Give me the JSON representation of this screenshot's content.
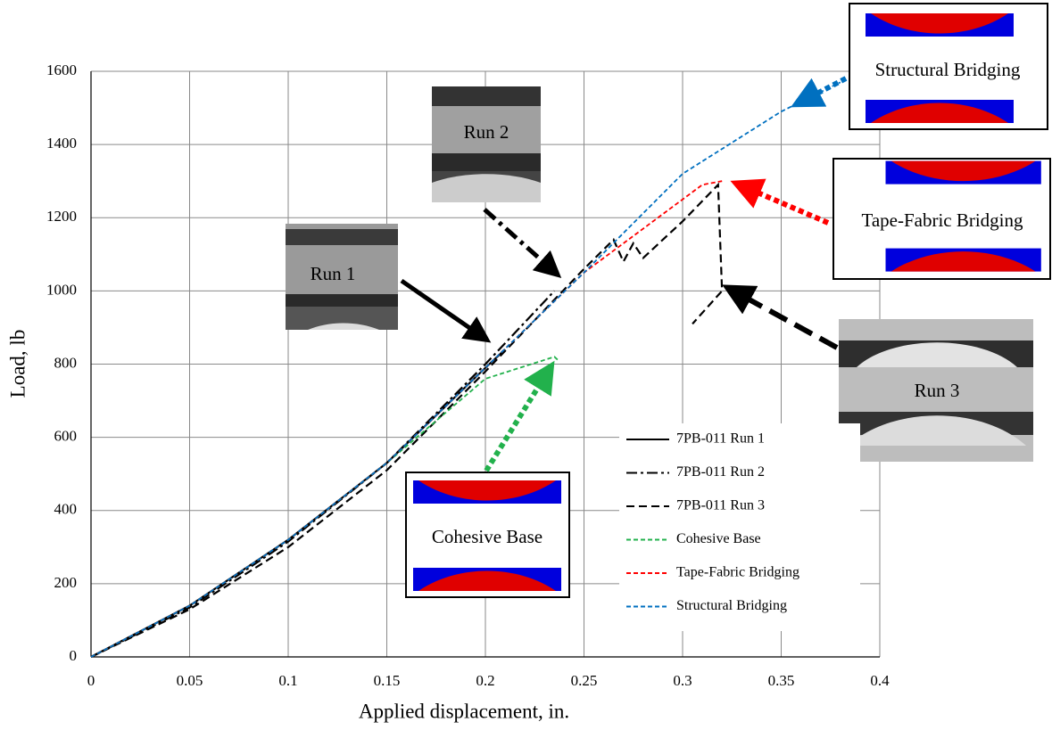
{
  "chart_data": {
    "type": "line",
    "x_label": "Applied displacement, in.",
    "y_label": "Load, lb",
    "xlim": [
      0,
      0.4
    ],
    "xticks": [
      0,
      0.05,
      0.1,
      0.15,
      0.2,
      0.25,
      0.3,
      0.35,
      0.4
    ],
    "ylim": [
      0,
      1600
    ],
    "yticks": [
      0,
      200,
      400,
      600,
      800,
      1000,
      1200,
      1400,
      1600
    ],
    "grid": true,
    "legend": "lower right",
    "series": [
      {
        "name": "7PB-011 Run 1",
        "color": "#000000",
        "style": "solid",
        "x": [
          0,
          0.05,
          0.1,
          0.15,
          0.2,
          0.21
        ],
        "values": [
          0,
          140,
          320,
          530,
          790,
          840
        ]
      },
      {
        "name": "7PB-011 Run 2",
        "color": "#000000",
        "style": "dashdot",
        "x": [
          0,
          0.05,
          0.1,
          0.15,
          0.2,
          0.235
        ],
        "values": [
          0,
          135,
          315,
          530,
          800,
          1000
        ]
      },
      {
        "name": "7PB-011 Run 3",
        "color": "#000000",
        "style": "dashed",
        "x": [
          0,
          0.05,
          0.1,
          0.15,
          0.2,
          0.25,
          0.265,
          0.27,
          0.275,
          0.28,
          0.3,
          0.318,
          0.32,
          0.305
        ],
        "values": [
          0,
          130,
          300,
          510,
          780,
          1060,
          1140,
          1080,
          1130,
          1090,
          1190,
          1290,
          1000,
          910
        ]
      },
      {
        "name": "Cohesive Base",
        "color": "#22b14c",
        "style": "short",
        "x": [
          0,
          0.05,
          0.1,
          0.15,
          0.2,
          0.235,
          0.237
        ],
        "values": [
          0,
          140,
          320,
          530,
          760,
          820,
          810
        ]
      },
      {
        "name": "Tape-Fabric Bridging",
        "color": "#ff0000",
        "style": "short",
        "x": [
          0,
          0.05,
          0.1,
          0.15,
          0.2,
          0.25,
          0.3,
          0.31,
          0.32
        ],
        "values": [
          0,
          140,
          320,
          530,
          790,
          1050,
          1250,
          1290,
          1300
        ]
      },
      {
        "name": "Structural Bridging",
        "color": "#0070c0",
        "style": "short",
        "x": [
          0,
          0.05,
          0.1,
          0.15,
          0.2,
          0.25,
          0.3,
          0.35,
          0.38
        ],
        "values": [
          0,
          140,
          320,
          530,
          790,
          1050,
          1320,
          1490,
          1570
        ]
      }
    ],
    "annotations": [
      "Run 1",
      "Run 2",
      "Run 3",
      "Cohesive Base",
      "Tape-Fabric Bridging",
      "Structural Bridging"
    ]
  }
}
